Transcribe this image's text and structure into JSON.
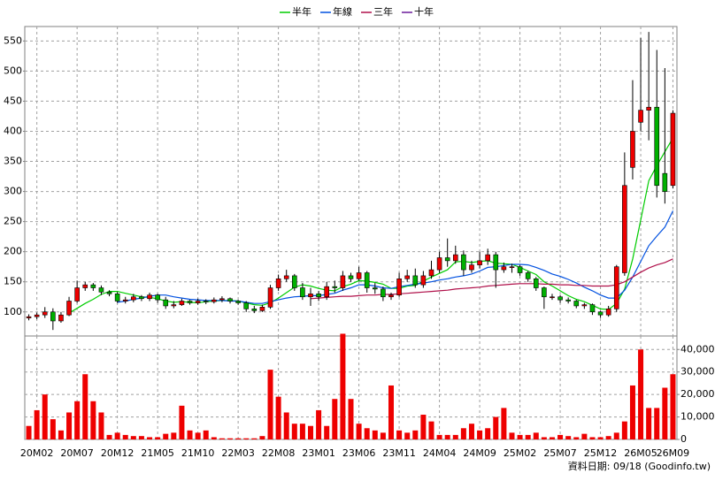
{
  "chart_data": {
    "type": "candlestick",
    "grid": true,
    "legend_position": "top",
    "footnote": "資料日期: 09/18 (Goodinfo.tw)",
    "up_color": "#ee0000",
    "down_color": "#00b000",
    "categories": [
      null,
      "20M02",
      null,
      null,
      null,
      null,
      "20M07",
      null,
      null,
      null,
      null,
      "20M12",
      null,
      null,
      null,
      null,
      "21M05",
      null,
      null,
      null,
      null,
      "21M10",
      null,
      null,
      null,
      null,
      "22M03",
      null,
      null,
      null,
      null,
      "22M08",
      null,
      null,
      null,
      null,
      "23M01",
      null,
      null,
      null,
      null,
      "23M06",
      null,
      null,
      null,
      null,
      "23M11",
      null,
      null,
      null,
      null,
      "24M04",
      null,
      null,
      null,
      null,
      "24M09",
      null,
      null,
      null,
      null,
      "25M02",
      null,
      null,
      null,
      null,
      "25M07",
      null,
      null,
      null,
      null,
      "25M12",
      null,
      null,
      null,
      null,
      "26M05",
      null,
      null,
      null,
      "26M09"
    ],
    "open": [
      90,
      92,
      95,
      100,
      85,
      95,
      118,
      140,
      145,
      140,
      133,
      130,
      118,
      120,
      125,
      122,
      128,
      120,
      110,
      112,
      118,
      115,
      118,
      117,
      120,
      122,
      118,
      115,
      105,
      102,
      108,
      140,
      155,
      160,
      140,
      125,
      130,
      125,
      142,
      140,
      160,
      155,
      165,
      140,
      138,
      125,
      128,
      155,
      160,
      145,
      160,
      170,
      190,
      185,
      195,
      170,
      178,
      185,
      195,
      170,
      175,
      175,
      165,
      155,
      140,
      125,
      125,
      120,
      118,
      110,
      112,
      100,
      95,
      105,
      165,
      340,
      415,
      435,
      440,
      330,
      310
    ],
    "high": [
      96,
      99,
      108,
      106,
      100,
      125,
      152,
      150,
      148,
      144,
      136,
      133,
      125,
      130,
      128,
      132,
      130,
      125,
      118,
      122,
      120,
      122,
      121,
      124,
      126,
      124,
      120,
      118,
      110,
      112,
      145,
      162,
      170,
      163,
      148,
      140,
      135,
      150,
      152,
      168,
      165,
      175,
      168,
      148,
      142,
      132,
      165,
      170,
      172,
      168,
      185,
      200,
      222,
      210,
      202,
      185,
      200,
      205,
      200,
      182,
      180,
      178,
      168,
      158,
      142,
      130,
      128,
      124,
      120,
      115,
      114,
      102,
      110,
      178,
      365,
      485,
      555,
      565,
      535,
      505,
      435
    ],
    "low": [
      86,
      88,
      90,
      70,
      82,
      93,
      115,
      135,
      135,
      128,
      126,
      115,
      114,
      116,
      118,
      118,
      115,
      105,
      106,
      110,
      112,
      112,
      113,
      114,
      116,
      114,
      112,
      100,
      98,
      100,
      105,
      135,
      150,
      135,
      120,
      110,
      118,
      120,
      132,
      135,
      150,
      152,
      132,
      130,
      118,
      120,
      125,
      150,
      140,
      140,
      155,
      165,
      175,
      180,
      160,
      165,
      172,
      178,
      140,
      165,
      165,
      160,
      150,
      135,
      105,
      120,
      115,
      114,
      106,
      105,
      95,
      90,
      92,
      100,
      160,
      320,
      400,
      385,
      290,
      280,
      305
    ],
    "close": [
      92,
      95,
      100,
      85,
      95,
      118,
      140,
      145,
      140,
      133,
      130,
      118,
      120,
      125,
      122,
      128,
      120,
      110,
      112,
      118,
      115,
      118,
      117,
      120,
      122,
      118,
      115,
      105,
      102,
      108,
      140,
      155,
      160,
      140,
      125,
      130,
      125,
      142,
      140,
      160,
      155,
      165,
      140,
      138,
      125,
      128,
      155,
      160,
      145,
      160,
      170,
      190,
      185,
      195,
      170,
      178,
      185,
      195,
      170,
      175,
      175,
      165,
      155,
      140,
      125,
      125,
      120,
      118,
      110,
      112,
      100,
      95,
      105,
      175,
      310,
      400,
      435,
      440,
      310,
      300,
      430
    ],
    "series": [
      {
        "name": "半年",
        "color": "#00cc00",
        "values": [
          null,
          null,
          null,
          null,
          null,
          98,
          106,
          114,
          121,
          129,
          134,
          134,
          131,
          128,
          125,
          124,
          122,
          118,
          116,
          117,
          116,
          115,
          117,
          118,
          119,
          119,
          118,
          115,
          112,
          111,
          115,
          123,
          132,
          141,
          145,
          143,
          139,
          136,
          135,
          142,
          146,
          152,
          151,
          149,
          146,
          139,
          139,
          143,
          144,
          151,
          158,
          164,
          170,
          183,
          184,
          182,
          184,
          185,
          181,
          180,
          179,
          174,
          168,
          162,
          150,
          143,
          135,
          127,
          121,
          117,
          111,
          105,
          104,
          114,
          138,
          188,
          253,
          318,
          343,
          366,
          389
        ]
      },
      {
        "name": "年線",
        "color": "#0050e0",
        "values": [
          null,
          null,
          null,
          null,
          null,
          null,
          null,
          null,
          null,
          null,
          null,
          116,
          118,
          121,
          123,
          126,
          128,
          128,
          125,
          123,
          121,
          120,
          119,
          119,
          119,
          118,
          118,
          116,
          114,
          114,
          117,
          120,
          123,
          125,
          126,
          127,
          127,
          129,
          131,
          136,
          140,
          145,
          145,
          143,
          140,
          139,
          142,
          144,
          146,
          148,
          150,
          153,
          155,
          158,
          160,
          163,
          168,
          174,
          175,
          177,
          179,
          179,
          178,
          174,
          169,
          163,
          159,
          154,
          148,
          141,
          135,
          128,
          123,
          123,
          136,
          158,
          184,
          210,
          226,
          241,
          268
        ]
      },
      {
        "name": "三年",
        "color": "#b0104a",
        "values": [
          null,
          null,
          null,
          null,
          null,
          null,
          null,
          null,
          null,
          null,
          null,
          null,
          null,
          null,
          null,
          null,
          null,
          null,
          null,
          null,
          null,
          null,
          null,
          null,
          null,
          null,
          null,
          null,
          null,
          null,
          null,
          null,
          null,
          null,
          null,
          122,
          123,
          124,
          125,
          126,
          126,
          127,
          128,
          128,
          129,
          129,
          130,
          131,
          132,
          133,
          134,
          135,
          136,
          138,
          139,
          140,
          141,
          143,
          144,
          145,
          146,
          147,
          147,
          147,
          146,
          146,
          145,
          145,
          144,
          144,
          143,
          143,
          143,
          145,
          150,
          158,
          166,
          173,
          178,
          182,
          188
        ]
      },
      {
        "name": "十年",
        "color": "#6a1b9a",
        "values": [
          null,
          null,
          null,
          null,
          null,
          null,
          null,
          null,
          null,
          null,
          null,
          null,
          null,
          null,
          null,
          null,
          null,
          null,
          null,
          null,
          null,
          null,
          null,
          null,
          null,
          null,
          null,
          null,
          null,
          null,
          null,
          null,
          null,
          null,
          null,
          null,
          null,
          null,
          null,
          null,
          null,
          null,
          null,
          null,
          null,
          null,
          null,
          null,
          null,
          null,
          null,
          null,
          null,
          null,
          null,
          null,
          null,
          null,
          null,
          null,
          null,
          null,
          null,
          null,
          null,
          null,
          null,
          null,
          null,
          null,
          null,
          null,
          null,
          null,
          null,
          null,
          null,
          null,
          null,
          null,
          null
        ]
      }
    ],
    "ylim": [
      60,
      574
    ],
    "yticks": [
      100,
      150,
      200,
      250,
      300,
      350,
      400,
      450,
      500,
      550
    ],
    "volume": {
      "color": "#ee0000",
      "values": [
        6000,
        13000,
        20000,
        9000,
        4000,
        12000,
        17000,
        29000,
        17000,
        12000,
        2000,
        3000,
        2000,
        1500,
        1500,
        1000,
        1000,
        2500,
        3000,
        15000,
        4000,
        3000,
        4000,
        1000,
        500,
        500,
        500,
        500,
        500,
        1500,
        31000,
        19000,
        12000,
        7000,
        7000,
        6000,
        13000,
        6000,
        18000,
        47000,
        18000,
        7000,
        5000,
        4000,
        3000,
        24000,
        4000,
        3000,
        4000,
        11000,
        8000,
        2000,
        2000,
        2000,
        5000,
        7000,
        4000,
        5000,
        10000,
        14000,
        3000,
        2000,
        2000,
        3000,
        1000,
        1000,
        2000,
        1500,
        1000,
        2500,
        1000,
        1000,
        1500,
        3000,
        8000,
        24000,
        40000,
        14000,
        14000,
        23000,
        29000
      ],
      "ylim": [
        0,
        46000
      ],
      "yticks": [
        0,
        {
          "value": 10000,
          "label": "10,000"
        },
        {
          "value": 20000,
          "label": "20,000"
        },
        {
          "value": 30000,
          "label": "30,000"
        },
        {
          "value": 40000,
          "label": "40,000"
        }
      ]
    }
  }
}
